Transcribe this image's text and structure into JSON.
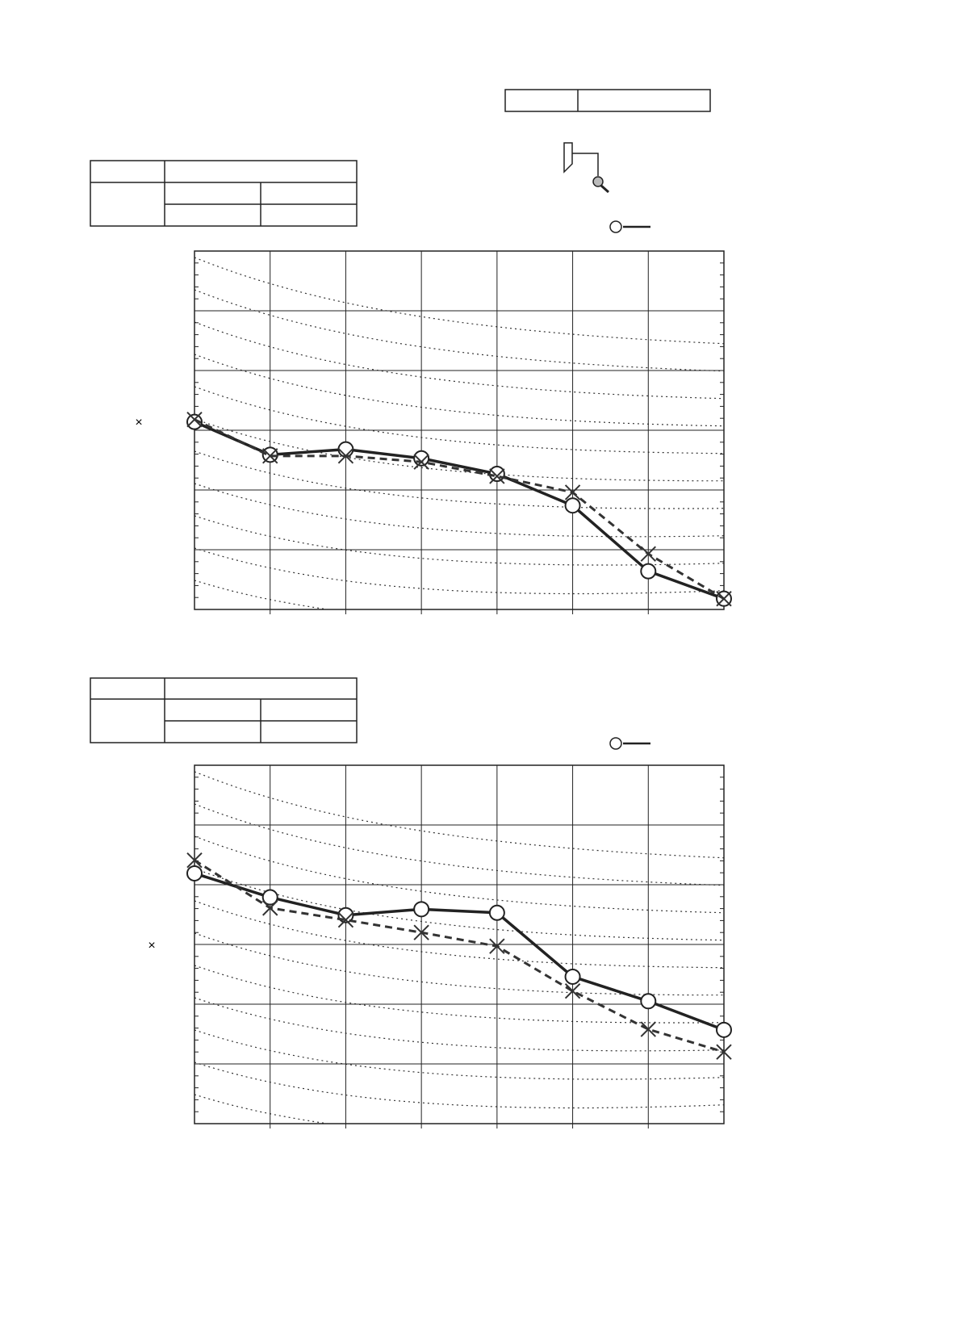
{
  "chart_data": [
    {
      "type": "line",
      "y_label": "×",
      "categories": [
        null,
        null,
        null,
        null,
        null,
        null,
        null,
        null
      ],
      "ylim": [
        10,
        70
      ],
      "yticks": [
        10,
        20,
        30,
        40,
        50,
        60,
        70
      ],
      "grid": true,
      "series": [
        {
          "color": "#222222",
          "marker": "circle",
          "dashed": false,
          "values": [
            41.4,
            35.9,
            36.8,
            35.3,
            32.7,
            27.4,
            16.4,
            11.8
          ]
        },
        {
          "color": "#333333",
          "marker": "cross",
          "dashed": true,
          "values": [
            41.8,
            35.7,
            35.7,
            34.7,
            32.3,
            29.6,
            19.3,
            11.8
          ]
        }
      ]
    },
    {
      "type": "line",
      "y_label": "×",
      "categories": [
        null,
        null,
        null,
        null,
        null,
        null,
        null,
        null
      ],
      "ylim": [
        10,
        70
      ],
      "yticks": [
        10,
        20,
        30,
        40,
        50,
        60,
        70
      ],
      "grid": true,
      "series": [
        {
          "color": "#222222",
          "marker": "circle",
          "dashed": false,
          "values": [
            51.9,
            47.9,
            44.9,
            45.9,
            45.3,
            34.6,
            30.5,
            25.7
          ]
        },
        {
          "color": "#333333",
          "marker": "cross",
          "dashed": true,
          "values": [
            54.1,
            46.1,
            44.1,
            42.0,
            39.7,
            32.2,
            25.8,
            22.0
          ]
        }
      ]
    }
  ]
}
